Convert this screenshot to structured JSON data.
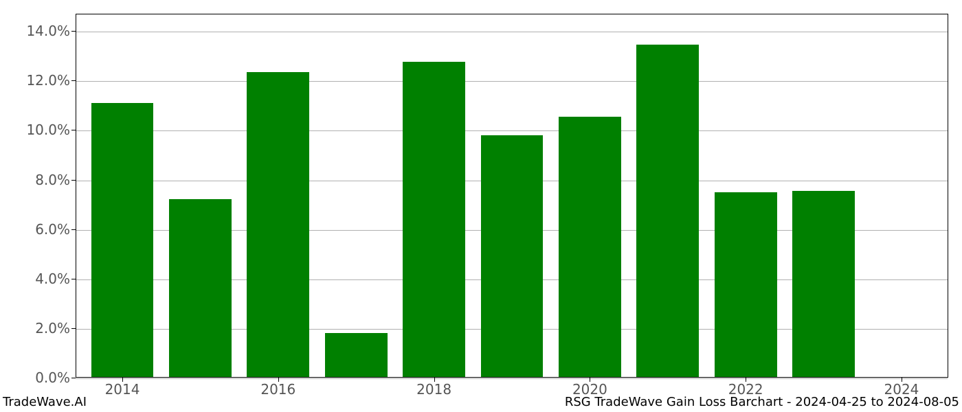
{
  "chart": {
    "type": "bar",
    "years": [
      2014,
      2015,
      2016,
      2017,
      2018,
      2019,
      2020,
      2021,
      2022,
      2023,
      2024
    ],
    "values": [
      11.1,
      7.2,
      12.35,
      1.8,
      12.75,
      9.8,
      10.55,
      13.45,
      7.5,
      7.55,
      0.0
    ],
    "bar_color": "#008000",
    "background_color": "#ffffff",
    "grid_color": "#b0b0b0",
    "axis_color": "#000000",
    "tick_label_color": "#555555",
    "y_ticks": [
      0,
      2,
      4,
      6,
      8,
      10,
      12,
      14
    ],
    "y_tick_labels": [
      "0.0%",
      "2.0%",
      "4.0%",
      "6.0%",
      "8.0%",
      "10.0%",
      "12.0%",
      "14.0%"
    ],
    "x_tick_years": [
      2014,
      2016,
      2018,
      2020,
      2022,
      2024
    ],
    "x_tick_labels": [
      "2014",
      "2016",
      "2018",
      "2020",
      "2022",
      "2024"
    ],
    "y_min": 0,
    "y_max": 14.7,
    "x_min": 2013.4,
    "x_max": 2024.6,
    "bar_width_years": 0.8,
    "tick_fontsize": 20,
    "footer_fontsize": 18
  },
  "footer": {
    "left": "TradeWave.AI",
    "right": "RSG TradeWave Gain Loss Barchart - 2024-04-25 to 2024-08-05"
  }
}
